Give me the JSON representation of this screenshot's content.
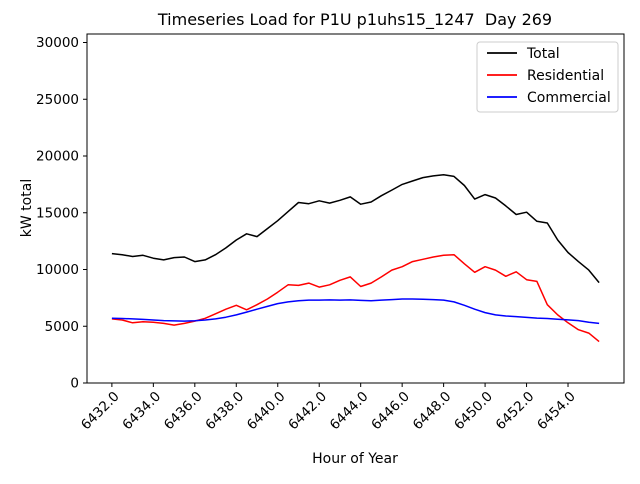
{
  "chart_data": {
    "type": "line",
    "title": "Timeseries Load for P1U p1uhs15_1247  Day 269",
    "xlabel": "Hour of Year",
    "ylabel": "kW total",
    "xlim": [
      6430.8,
      6456.7
    ],
    "ylim": [
      0,
      30750
    ],
    "grid": false,
    "legend_position": "upper-right",
    "frame_color": "#000000",
    "legend_border_color": "#cccccc",
    "xticks": {
      "values": [
        6432,
        6434,
        6436,
        6438,
        6440,
        6442,
        6444,
        6446,
        6448,
        6450,
        6452,
        6454
      ],
      "labels": [
        "6432.0",
        "6434.0",
        "6436.0",
        "6438.0",
        "6440.0",
        "6442.0",
        "6444.0",
        "6446.0",
        "6448.0",
        "6450.0",
        "6452.0",
        "6454.0"
      ]
    },
    "yticks": {
      "values": [
        0,
        5000,
        10000,
        15000,
        20000,
        25000,
        30000
      ],
      "labels": [
        "0",
        "5000",
        "10000",
        "15000",
        "20000",
        "25000",
        "30000"
      ]
    },
    "x": [
      6432.0,
      6432.5,
      6433.0,
      6433.5,
      6434.0,
      6434.5,
      6435.0,
      6435.5,
      6436.0,
      6436.5,
      6437.0,
      6437.5,
      6438.0,
      6438.5,
      6439.0,
      6439.5,
      6440.0,
      6440.5,
      6441.0,
      6441.5,
      6442.0,
      6442.5,
      6443.0,
      6443.5,
      6444.0,
      6444.5,
      6445.0,
      6445.5,
      6446.0,
      6446.5,
      6447.0,
      6447.5,
      6448.0,
      6448.5,
      6449.0,
      6449.5,
      6450.0,
      6450.5,
      6451.0,
      6451.5,
      6452.0,
      6452.5,
      6453.0,
      6453.5,
      6454.0,
      6454.5,
      6455.0,
      6455.5
    ],
    "series": [
      {
        "name": "Total",
        "color": "#000000",
        "values": [
          11400,
          11300,
          11150,
          11250,
          11000,
          10850,
          11050,
          11100,
          10700,
          10850,
          11300,
          11900,
          12600,
          13150,
          12900,
          13600,
          14300,
          15100,
          15900,
          15800,
          16050,
          15850,
          16100,
          16400,
          15750,
          15950,
          16500,
          17000,
          17500,
          17800,
          18100,
          18250,
          18350,
          18200,
          17400,
          16200,
          16600,
          16300,
          15600,
          14850,
          15050,
          14250,
          14100,
          12600,
          11500,
          10700,
          9950,
          8850
        ]
      },
      {
        "name": "Residential",
        "color": "#ff0000",
        "values": [
          5650,
          5550,
          5300,
          5400,
          5350,
          5250,
          5100,
          5250,
          5450,
          5700,
          6100,
          6500,
          6850,
          6450,
          6900,
          7400,
          8000,
          8650,
          8600,
          8800,
          8450,
          8650,
          9050,
          9350,
          8500,
          8800,
          9350,
          9950,
          10250,
          10700,
          10900,
          11100,
          11250,
          11300,
          10500,
          9750,
          10250,
          9950,
          9400,
          9800,
          9100,
          8950,
          6900,
          6000,
          5300,
          4700,
          4400,
          3650
        ]
      },
      {
        "name": "Commercial",
        "color": "#0000ff",
        "values": [
          5700,
          5680,
          5650,
          5600,
          5550,
          5500,
          5470,
          5450,
          5480,
          5550,
          5650,
          5800,
          6000,
          6250,
          6500,
          6750,
          7000,
          7150,
          7250,
          7300,
          7300,
          7320,
          7300,
          7320,
          7280,
          7250,
          7300,
          7350,
          7400,
          7400,
          7380,
          7350,
          7300,
          7150,
          6850,
          6500,
          6200,
          6000,
          5900,
          5850,
          5780,
          5720,
          5680,
          5620,
          5560,
          5500,
          5350,
          5250
        ]
      }
    ]
  }
}
